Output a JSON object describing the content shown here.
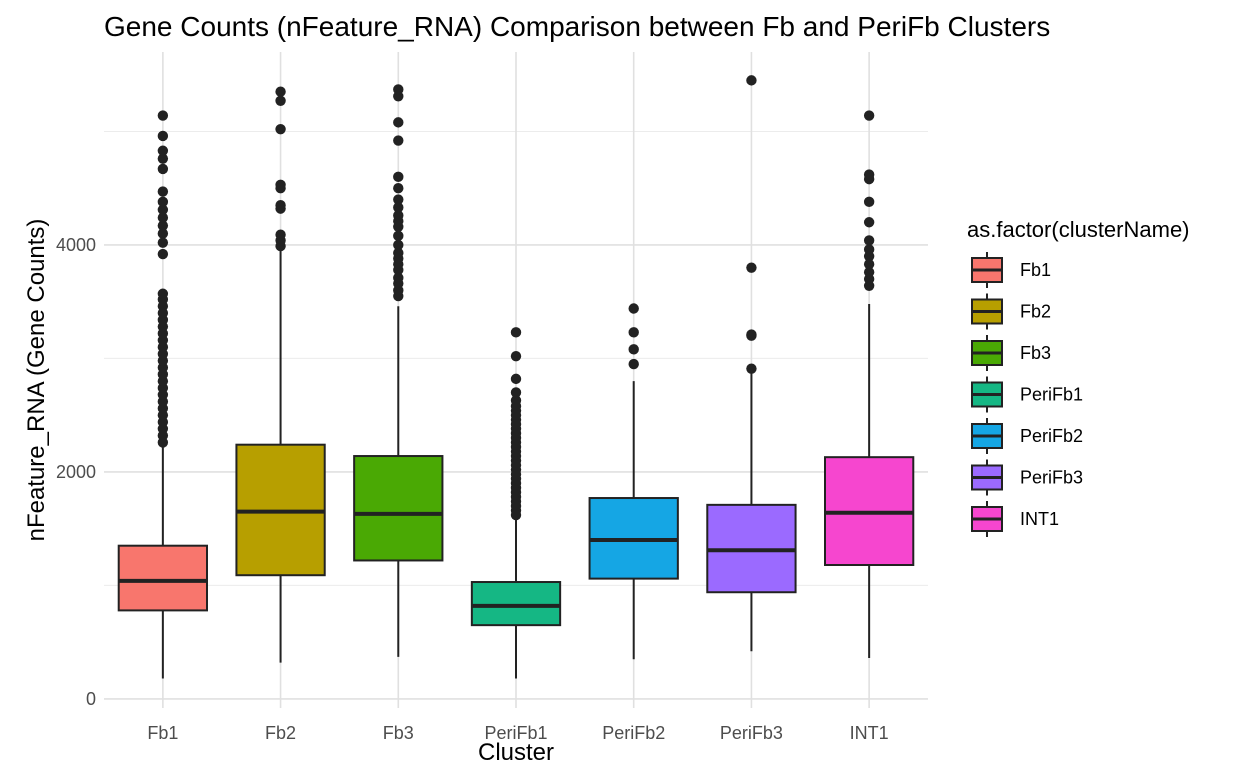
{
  "chart_data": {
    "type": "boxplot",
    "title": "Gene Counts (nFeature_RNA) Comparison between Fb and PeriFb Clusters",
    "xlabel": "Cluster",
    "ylabel": "nFeature_RNA (Gene Counts)",
    "ylim": [
      -80,
      5700
    ],
    "y_ticks": [
      0,
      2000,
      4000
    ],
    "y_tick_labels": [
      "0",
      "2000",
      "4000"
    ],
    "grid": true,
    "legend": {
      "title": "as.factor(clusterName)",
      "position": "right"
    },
    "categories": [
      "Fb1",
      "Fb2",
      "Fb3",
      "PeriFb1",
      "PeriFb2",
      "PeriFb3",
      "INT1"
    ],
    "series": [
      {
        "name": "Fb1",
        "color": "#F8766D",
        "whisker_low": 180,
        "q1": 780,
        "median": 1040,
        "q3": 1350,
        "whisker_high": 2220,
        "outliers": [
          2260,
          2320,
          2380,
          2440,
          2500,
          2560,
          2620,
          2680,
          2740,
          2800,
          2860,
          2920,
          2980,
          3040,
          3100,
          3160,
          3220,
          3280,
          3340,
          3400,
          3460,
          3520,
          3570,
          3920,
          4020,
          4100,
          4170,
          4240,
          4310,
          4380,
          4470,
          4670,
          4760,
          4830,
          4960,
          5140
        ]
      },
      {
        "name": "Fb2",
        "color": "#B79F00",
        "whisker_low": 320,
        "q1": 1090,
        "median": 1650,
        "q3": 2240,
        "whisker_high": 3950,
        "outliers": [
          3990,
          4040,
          4090,
          4320,
          4350,
          4500,
          4530,
          5020,
          5270,
          5350
        ]
      },
      {
        "name": "Fb3",
        "color": "#4AA904",
        "whisker_low": 370,
        "q1": 1220,
        "median": 1630,
        "q3": 2140,
        "whisker_high": 3460,
        "outliers": [
          3550,
          3600,
          3660,
          3710,
          3780,
          3830,
          3880,
          3930,
          4000,
          4080,
          4160,
          4210,
          4260,
          4330,
          4400,
          4500,
          4600,
          4920,
          5080,
          5310,
          5370
        ]
      },
      {
        "name": "PeriFb1",
        "color": "#15B784",
        "whisker_low": 180,
        "q1": 650,
        "median": 820,
        "q3": 1030,
        "whisker_high": 1590,
        "outliers": [
          1620,
          1660,
          1700,
          1740,
          1780,
          1820,
          1860,
          1900,
          1940,
          1980,
          2020,
          2060,
          2100,
          2140,
          2180,
          2220,
          2260,
          2300,
          2340,
          2380,
          2420,
          2460,
          2500,
          2540,
          2580,
          2630,
          2700,
          2820,
          3020,
          3230
        ]
      },
      {
        "name": "PeriFb2",
        "color": "#15A6E4",
        "whisker_low": 350,
        "q1": 1060,
        "median": 1400,
        "q3": 1770,
        "whisker_high": 2800,
        "outliers": [
          2950,
          3080,
          3230,
          3440
        ]
      },
      {
        "name": "PeriFb3",
        "color": "#9B6AFF",
        "whisker_low": 420,
        "q1": 940,
        "median": 1310,
        "q3": 1710,
        "whisker_high": 2880,
        "outliers": [
          2910,
          3200,
          3210,
          3800,
          5450
        ]
      },
      {
        "name": "INT1",
        "color": "#F646CF",
        "whisker_low": 360,
        "q1": 1180,
        "median": 1640,
        "q3": 2130,
        "whisker_high": 3480,
        "outliers": [
          3640,
          3700,
          3760,
          3830,
          3900,
          3960,
          4040,
          4200,
          4380,
          4580,
          4620,
          5140
        ]
      }
    ]
  }
}
